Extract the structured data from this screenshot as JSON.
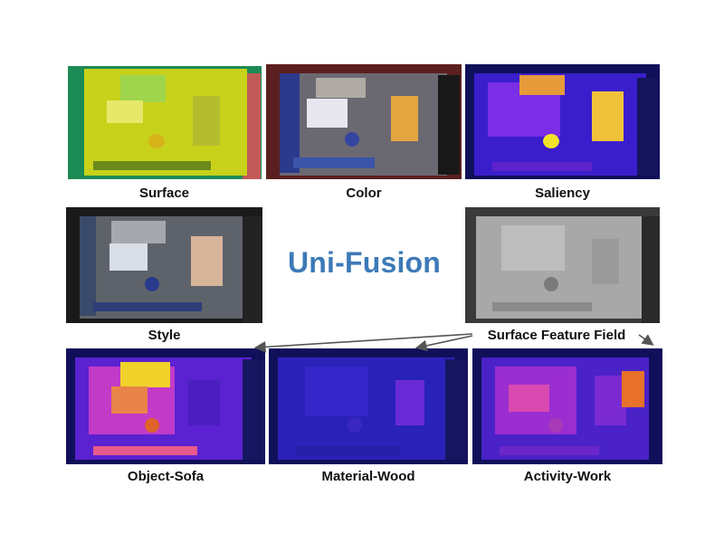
{
  "title": "Uni-Fusion",
  "panels": [
    {
      "caption": "Surface"
    },
    {
      "caption": "Color"
    },
    {
      "caption": "Saliency"
    },
    {
      "caption": "Style"
    },
    {
      "caption": "Surface Feature Field"
    },
    {
      "caption": "Object-Sofa"
    },
    {
      "caption": "Material-Wood"
    },
    {
      "caption": "Activity-Work"
    }
  ]
}
